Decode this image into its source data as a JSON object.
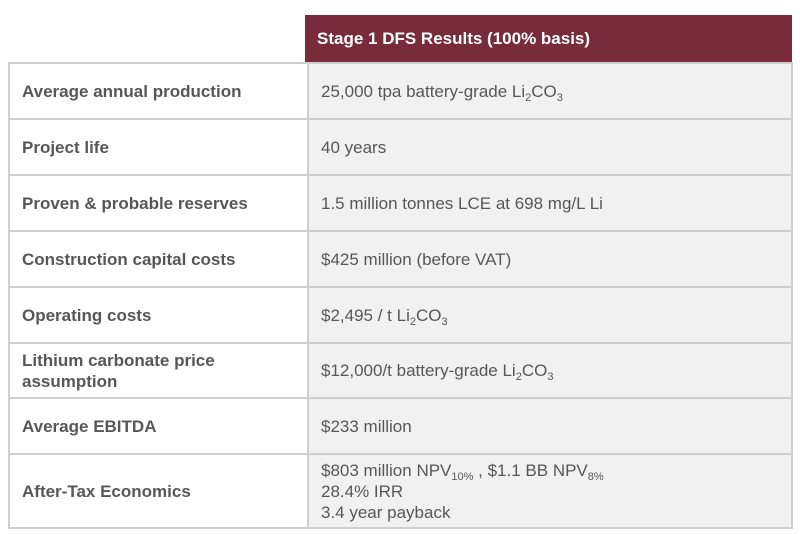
{
  "header": {
    "title": "Stage 1 DFS Results (100% basis)"
  },
  "colors": {
    "header_bg": "#772b3b",
    "value_bg": "#f1f1f1",
    "border": "#cfcfcf"
  },
  "rows": [
    {
      "label": "Average annual production",
      "value": "25,000 tpa battery-grade Li",
      "sub1": "2",
      "mid": "CO",
      "sub2": "3"
    },
    {
      "label": "Project life",
      "value": "40 years"
    },
    {
      "label": "Proven & probable reserves",
      "value": "1.5 million tonnes LCE at 698 mg/L Li"
    },
    {
      "label": "Construction capital costs",
      "value": "$425 million (before VAT)"
    },
    {
      "label": "Operating costs",
      "value": "$2,495 / t Li",
      "sub1": "2",
      "mid": "CO",
      "sub2": "3"
    },
    {
      "label": "Lithium carbonate price assumption",
      "value": "$12,000/t battery-grade Li",
      "sub1": "2",
      "mid": "CO",
      "sub2": "3"
    },
    {
      "label": "Average EBITDA",
      "value": "$233 million"
    },
    {
      "label": "After-Tax Economics",
      "line1a": "$803 million NPV",
      "line1sub1": "10%",
      "line1b": " , $1.1 BB NPV",
      "line1sub2": "8%",
      "line2": "28.4% IRR",
      "line3": "3.4 year payback"
    }
  ]
}
